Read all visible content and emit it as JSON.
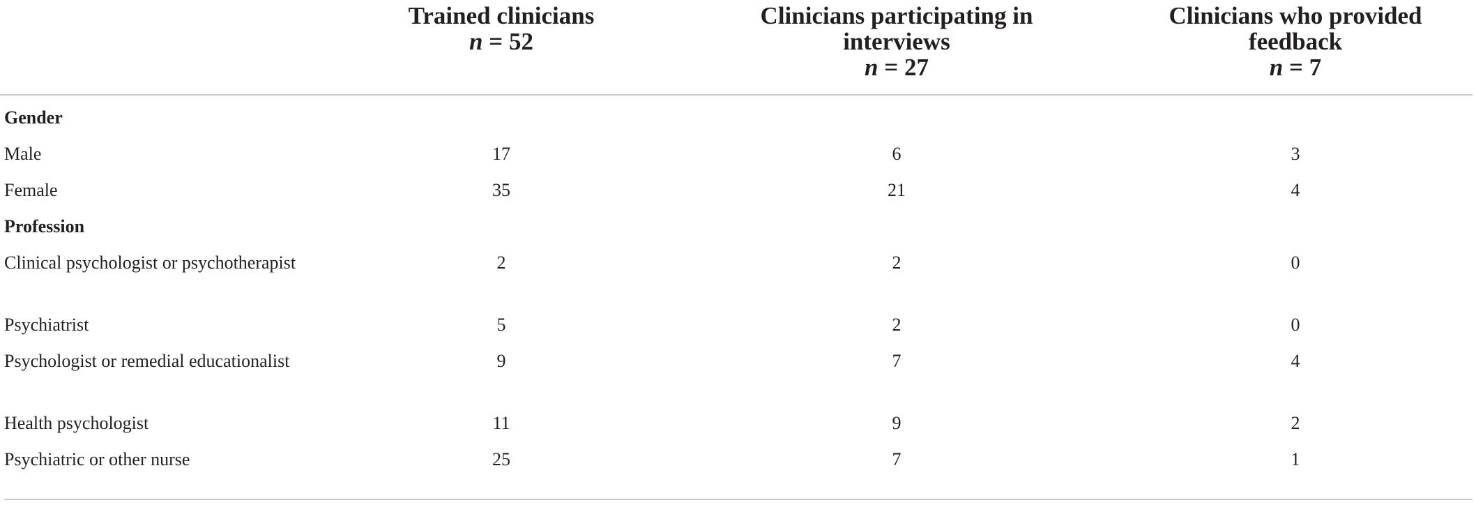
{
  "table": {
    "columns": [
      {
        "title": "",
        "n_label": ""
      },
      {
        "title": "Trained clinicians",
        "n_label": "n = 52",
        "n_var": "n",
        "n_rest": " = 52"
      },
      {
        "title": "Clinicians participating in interviews",
        "n_label": "n = 27",
        "n_var": "n",
        "n_rest": " = 27"
      },
      {
        "title": "Clinicians who provided feedback",
        "n_label": "n = 7",
        "n_var": "n",
        "n_rest": " = 7"
      }
    ],
    "sections": [
      {
        "heading": "Gender",
        "rows": [
          {
            "label": "Male",
            "values": [
              "17",
              "6",
              "3"
            ]
          },
          {
            "label": "Female",
            "values": [
              "35",
              "21",
              "4"
            ]
          }
        ]
      },
      {
        "heading": "Profession",
        "rows": [
          {
            "label": "Clinical psychologist or psychotherapist",
            "values": [
              "2",
              "2",
              "0"
            ]
          },
          {
            "label": "Psychiatrist",
            "values": [
              "5",
              "2",
              "0"
            ]
          },
          {
            "label": "Psychologist or remedial educationalist",
            "values": [
              "9",
              "7",
              "4"
            ]
          },
          {
            "label": "Health psychologist",
            "values": [
              "11",
              "9",
              "2"
            ]
          },
          {
            "label": "Psychiatric or other nurse",
            "values": [
              "25",
              "7",
              "1"
            ]
          }
        ]
      }
    ]
  }
}
